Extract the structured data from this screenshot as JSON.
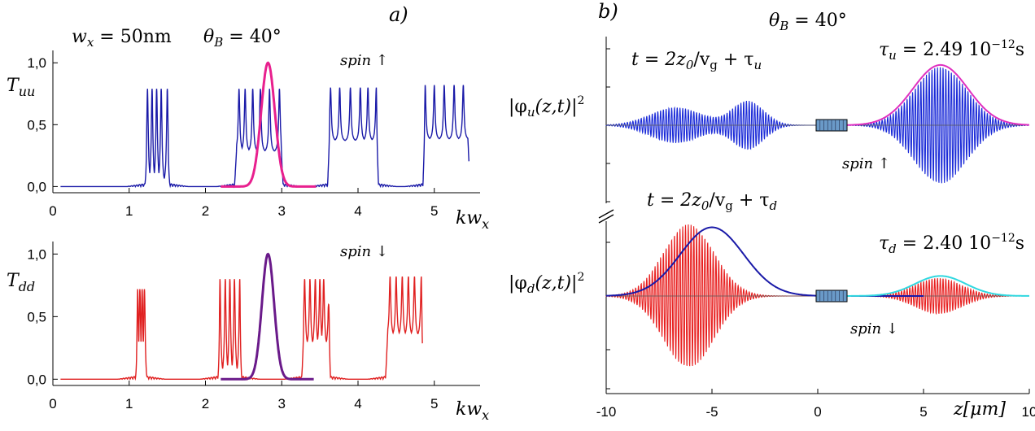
{
  "panel_labels": {
    "a": "a)",
    "b": "b)"
  },
  "chart_data": [
    {
      "type": "line",
      "id": "Tuu",
      "header_left": "w",
      "header_left_sub": "x",
      "header_left_value": " = 50nm",
      "header_right": "θ",
      "header_right_sub": "B",
      "header_right_value": " = 40°",
      "ylabel": "T",
      "ylabel_sub": "uu",
      "xlabel": "kw",
      "xlabel_sub": "x",
      "annotation": "spin ↑",
      "xlim": [
        0,
        5.6
      ],
      "ylim": [
        -0.05,
        1.1
      ],
      "xticks": [
        "0",
        "1",
        "2",
        "3",
        "4",
        "5"
      ],
      "yticks": [
        "0,0",
        "0,5",
        "1,0"
      ],
      "ytick_values": [
        0,
        0.5,
        1.0
      ],
      "series": [
        {
          "color": "#1a1aa8",
          "kind": "transmission",
          "bands": [
            {
              "start": 1.22,
              "end": 1.52,
              "peaks": [
                1.24,
                1.3,
                1.36,
                1.42,
                1.5
              ],
              "peak_height": 0.79,
              "floor": 0.0
            },
            {
              "start": 2.4,
              "end": 3.0,
              "peaks": [
                2.44,
                2.52,
                2.62,
                2.72,
                2.84,
                2.97
              ],
              "peak_height": 0.79,
              "floor": 0.45
            },
            {
              "start": 3.62,
              "end": 4.25,
              "peaks": [
                3.64,
                3.76,
                3.9,
                4.03,
                4.13,
                4.24
              ],
              "peak_height": 0.8,
              "floor": 0.6
            },
            {
              "start": 4.87,
              "end": 5.45,
              "peaks": [
                4.88,
                5.0,
                5.13,
                5.26,
                5.38
              ],
              "peak_height": 0.82,
              "floor": 0.62
            }
          ]
        },
        {
          "color": "#e8208e",
          "kind": "gaussian",
          "center": 2.82,
          "sigma": 0.09,
          "amplitude": 1.0,
          "range": [
            2.2,
            3.45
          ]
        }
      ]
    },
    {
      "type": "line",
      "id": "Tdd",
      "ylabel": "T",
      "ylabel_sub": "dd",
      "xlabel": "kw",
      "xlabel_sub": "x",
      "annotation": "spin ↓",
      "xlim": [
        0,
        5.6
      ],
      "ylim": [
        -0.05,
        1.1
      ],
      "xticks": [
        "0",
        "1",
        "2",
        "3",
        "4",
        "5"
      ],
      "yticks": [
        "0,0",
        "0,5",
        "1,0"
      ],
      "ytick_values": [
        0,
        0.5,
        1.0
      ],
      "series": [
        {
          "color": "#e02020",
          "kind": "transmission",
          "bands": [
            {
              "start": 1.1,
              "end": 1.22,
              "peaks": [
                1.11,
                1.14,
                1.17,
                1.2
              ],
              "peak_height": 0.72,
              "floor": 0.0
            },
            {
              "start": 2.18,
              "end": 2.46,
              "peaks": [
                2.19,
                2.26,
                2.32,
                2.38,
                2.45
              ],
              "peak_height": 0.8,
              "floor": 0.0
            },
            {
              "start": 3.28,
              "end": 3.62,
              "peaks": [
                3.3,
                3.37,
                3.44,
                3.5,
                3.55,
                3.62
              ],
              "peak_height": 0.8,
              "floor": 0.4
            },
            {
              "start": 4.38,
              "end": 4.84,
              "peaks": [
                4.42,
                4.5,
                4.58,
                4.66,
                4.74,
                4.83
              ],
              "peak_height": 0.82,
              "floor": 0.55
            }
          ]
        },
        {
          "color": "#6a1a8a",
          "kind": "gaussian",
          "center": 2.82,
          "sigma": 0.08,
          "amplitude": 1.0,
          "range": [
            2.2,
            3.42
          ]
        }
      ]
    },
    {
      "type": "line",
      "id": "phi_u",
      "header": "θ",
      "header_sub": "B",
      "header_value": " = 40°",
      "time_label": "t =  2z",
      "time_label_sub": "0",
      "time_label_rest": "/v",
      "time_label_sub2": "g",
      "time_label_tail": " + τ",
      "time_label_sub3": "u",
      "tau_label": "τ",
      "tau_sub": "u",
      "tau_value": " = 2.49 10",
      "tau_exp": "−12",
      "tau_unit": "s",
      "ylabel": "|φ",
      "ylabel_sub": "u",
      "ylabel_rest": "(z,t)|",
      "ylabel_exp": "2",
      "annotation": "spin ↑",
      "xlim": [
        -10,
        10
      ],
      "packets": [
        {
          "center": -6.7,
          "sigma": 1.2,
          "amplitude": 0.28
        },
        {
          "center": -3.3,
          "sigma": 0.75,
          "amplitude": 0.38
        },
        {
          "center": 5.8,
          "sigma": 1.25,
          "amplitude": 0.92
        }
      ],
      "oscillation_color": "#1a2ad8",
      "envelope": {
        "color": "#e030c0",
        "center": 5.8,
        "sigma": 1.3,
        "amplitude": 0.95,
        "range": [
          1.1,
          10
        ]
      }
    },
    {
      "type": "line",
      "id": "phi_d",
      "time_label": "t =  2z",
      "time_label_sub": "0",
      "time_label_rest": "/v",
      "time_label_sub2": "g",
      "time_label_tail": " + τ",
      "time_label_sub3": "d",
      "tau_label": "τ",
      "tau_sub": "d",
      "tau_value": " = 2.40 10",
      "tau_exp": "−12",
      "tau_unit": "s",
      "ylabel": "|φ",
      "ylabel_sub": "d",
      "ylabel_rest": "(z,t)|",
      "ylabel_exp": "2",
      "annotation": "spin ↓",
      "xlabel": "z[μm]",
      "xlim": [
        -10,
        10
      ],
      "xticks": [
        "-10",
        "-5",
        "0",
        "5",
        "10"
      ],
      "xtick_values": [
        -10,
        -5,
        0,
        5,
        10
      ],
      "packets": [
        {
          "center": -6.1,
          "sigma": 1.2,
          "amplitude": 1.0
        },
        {
          "center": 5.7,
          "sigma": 1.1,
          "amplitude": 0.25
        }
      ],
      "oscillation_color": "#e82020",
      "envelopes": [
        {
          "color": "#1a1aa8",
          "center": -5.0,
          "sigma": 1.5,
          "amplitude": 0.96,
          "range": [
            -10,
            5.0
          ]
        },
        {
          "color": "#30d8e0",
          "center": 5.8,
          "sigma": 1.2,
          "amplitude": 0.28,
          "range": [
            1.1,
            10
          ]
        }
      ]
    }
  ]
}
